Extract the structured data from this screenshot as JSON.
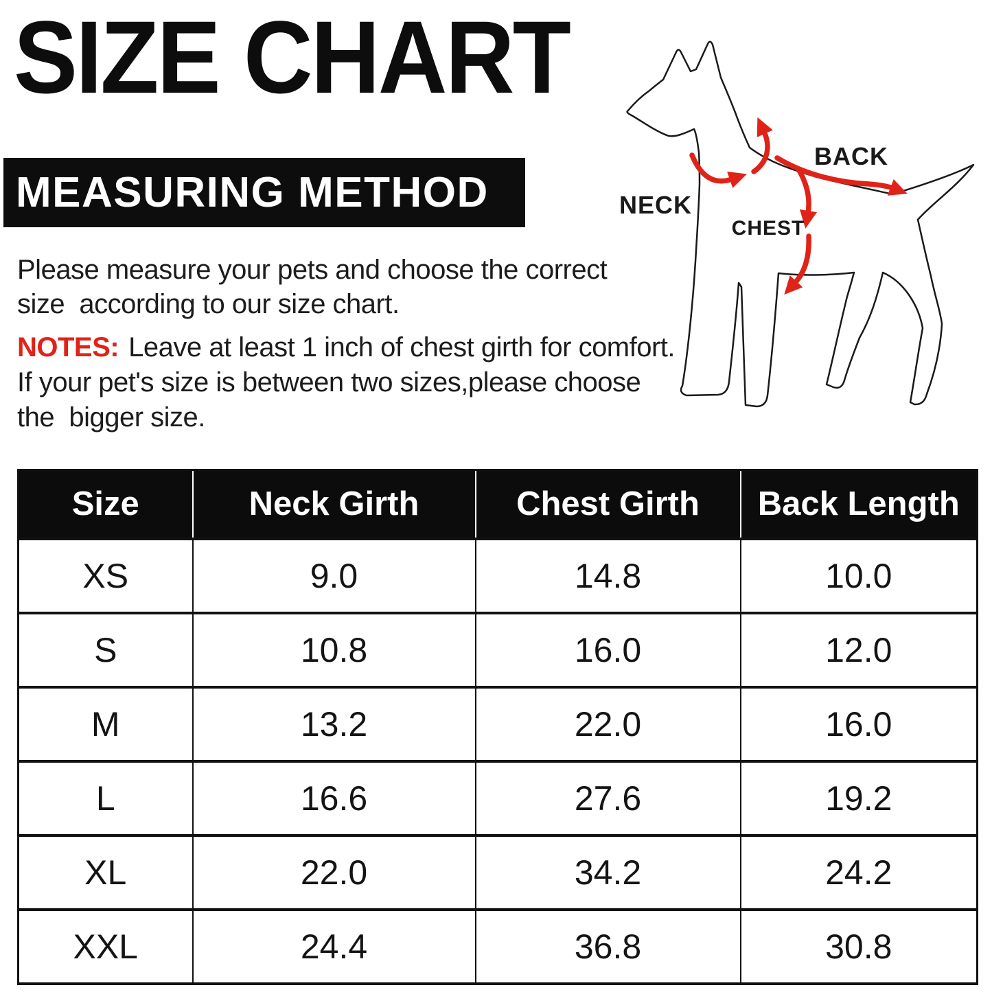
{
  "title": "SIZE CHART",
  "section_header": "MEASURING METHOD",
  "intro": {
    "line1": "Please measure your pets and choose the correct",
    "line2": "size  according to our size chart."
  },
  "notes": {
    "label": "NOTES:",
    "line1": "Leave at least 1 inch of chest girth for comfort.",
    "line2": "If your pet's size is between two sizes,please choose",
    "line3": "the  bigger size."
  },
  "diagram": {
    "neck_label": "NECK",
    "back_label": "BACK",
    "chest_label": "CHEST"
  },
  "colors": {
    "accent_red": "#e02318",
    "ink": "#0d0d0d"
  },
  "chart_data": {
    "type": "table",
    "title": "SIZE CHART",
    "columns": [
      "Size",
      "Neck Girth",
      "Chest Girth",
      "Back Length"
    ],
    "rows": [
      [
        "XS",
        "9.0",
        "14.8",
        "10.0"
      ],
      [
        "S",
        "10.8",
        "16.0",
        "12.0"
      ],
      [
        "M",
        "13.2",
        "22.0",
        "16.0"
      ],
      [
        "L",
        "16.6",
        "27.6",
        "19.2"
      ],
      [
        "XL",
        "22.0",
        "34.2",
        "24.2"
      ],
      [
        "XXL",
        "24.4",
        "36.8",
        "30.8"
      ]
    ]
  }
}
